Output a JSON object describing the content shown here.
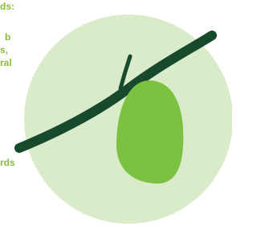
{
  "text_fragments": [
    "ds:",
    "b",
    "s,",
    "ral",
    "rds"
  ]
}
